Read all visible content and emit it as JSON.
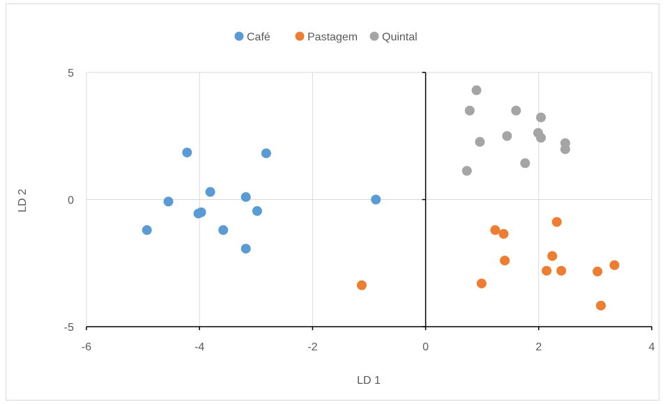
{
  "chart_data": {
    "type": "scatter",
    "xlabel": "LD 1",
    "ylabel": "LD 2",
    "xlim": [
      -6,
      4
    ],
    "ylim": [
      -5,
      5
    ],
    "x_ticks": [
      -6,
      -4,
      -2,
      0,
      2,
      4
    ],
    "y_ticks": [
      -5,
      0,
      5
    ],
    "grid": true,
    "legend_position": "top",
    "series": [
      {
        "name": "Café",
        "color": "#5B9BD5",
        "points": [
          {
            "x": -4.93,
            "y": -1.2
          },
          {
            "x": -4.55,
            "y": -0.08
          },
          {
            "x": -4.22,
            "y": 1.85
          },
          {
            "x": -4.02,
            "y": -0.55
          },
          {
            "x": -3.97,
            "y": -0.5
          },
          {
            "x": -3.81,
            "y": 0.3
          },
          {
            "x": -3.58,
            "y": -1.2
          },
          {
            "x": -3.18,
            "y": 0.1
          },
          {
            "x": -3.18,
            "y": -1.93
          },
          {
            "x": -2.98,
            "y": -0.45
          },
          {
            "x": -2.82,
            "y": 1.82
          },
          {
            "x": -0.88,
            "y": 0.0
          }
        ]
      },
      {
        "name": "Pastagem",
        "color": "#ED7D31",
        "points": [
          {
            "x": -1.13,
            "y": -3.37
          },
          {
            "x": 0.99,
            "y": -3.3
          },
          {
            "x": 1.23,
            "y": -1.2
          },
          {
            "x": 1.38,
            "y": -1.35
          },
          {
            "x": 1.4,
            "y": -2.4
          },
          {
            "x": 2.14,
            "y": -2.8
          },
          {
            "x": 2.24,
            "y": -2.22
          },
          {
            "x": 2.32,
            "y": -0.88
          },
          {
            "x": 2.4,
            "y": -2.8
          },
          {
            "x": 3.04,
            "y": -2.83
          },
          {
            "x": 3.1,
            "y": -4.17
          },
          {
            "x": 3.34,
            "y": -2.58
          }
        ]
      },
      {
        "name": "Quintal",
        "color": "#A5A5A5",
        "points": [
          {
            "x": 0.73,
            "y": 1.13
          },
          {
            "x": 0.78,
            "y": 3.5
          },
          {
            "x": 0.9,
            "y": 4.3
          },
          {
            "x": 0.96,
            "y": 2.27
          },
          {
            "x": 1.44,
            "y": 2.5
          },
          {
            "x": 1.6,
            "y": 3.5
          },
          {
            "x": 1.76,
            "y": 1.43
          },
          {
            "x": 1.99,
            "y": 2.62
          },
          {
            "x": 2.04,
            "y": 3.23
          },
          {
            "x": 2.04,
            "y": 2.43
          },
          {
            "x": 2.47,
            "y": 2.22
          },
          {
            "x": 2.47,
            "y": 1.98
          }
        ]
      }
    ]
  }
}
